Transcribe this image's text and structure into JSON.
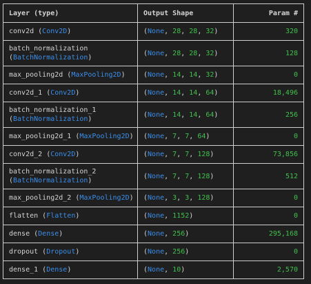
{
  "table": {
    "headers": {
      "layer": "Layer (type)",
      "shape": "Output Shape",
      "params": "Param #"
    },
    "rows": [
      {
        "name": "conv2d",
        "type": "Conv2D",
        "dims": [
          "None",
          "28",
          "28",
          "32"
        ],
        "params": "320",
        "wrap": false
      },
      {
        "name": "batch_normalization",
        "type": "BatchNormalization",
        "dims": [
          "None",
          "28",
          "28",
          "32"
        ],
        "params": "128",
        "wrap": true
      },
      {
        "name": "max_pooling2d",
        "type": "MaxPooling2D",
        "dims": [
          "None",
          "14",
          "14",
          "32"
        ],
        "params": "0",
        "wrap": false
      },
      {
        "name": "conv2d_1",
        "type": "Conv2D",
        "dims": [
          "None",
          "14",
          "14",
          "64"
        ],
        "params": "18,496",
        "wrap": false
      },
      {
        "name": "batch_normalization_1",
        "type": "BatchNormalization",
        "dims": [
          "None",
          "14",
          "14",
          "64"
        ],
        "params": "256",
        "wrap": true
      },
      {
        "name": "max_pooling2d_1",
        "type": "MaxPooling2D",
        "dims": [
          "None",
          "7",
          "7",
          "64"
        ],
        "params": "0",
        "wrap": false
      },
      {
        "name": "conv2d_2",
        "type": "Conv2D",
        "dims": [
          "None",
          "7",
          "7",
          "128"
        ],
        "params": "73,856",
        "wrap": false
      },
      {
        "name": "batch_normalization_2",
        "type": "BatchNormalization",
        "dims": [
          "None",
          "7",
          "7",
          "128"
        ],
        "params": "512",
        "wrap": true
      },
      {
        "name": "max_pooling2d_2",
        "type": "MaxPooling2D",
        "dims": [
          "None",
          "3",
          "3",
          "128"
        ],
        "params": "0",
        "wrap": false
      },
      {
        "name": "flatten",
        "type": "Flatten",
        "dims": [
          "None",
          "1152"
        ],
        "params": "0",
        "wrap": false
      },
      {
        "name": "dense",
        "type": "Dense",
        "dims": [
          "None",
          "256"
        ],
        "params": "295,168",
        "wrap": false
      },
      {
        "name": "dropout",
        "type": "Dropout",
        "dims": [
          "None",
          "256"
        ],
        "params": "0",
        "wrap": false
      },
      {
        "name": "dense_1",
        "type": "Dense",
        "dims": [
          "None",
          "10"
        ],
        "params": "2,570",
        "wrap": false
      }
    ]
  },
  "colors": {
    "background": "#1f1f1f",
    "text": "#d4d4d4",
    "type_blue": "#3b8eea",
    "number_green": "#3fc24c",
    "border": "#cfcfcf"
  }
}
